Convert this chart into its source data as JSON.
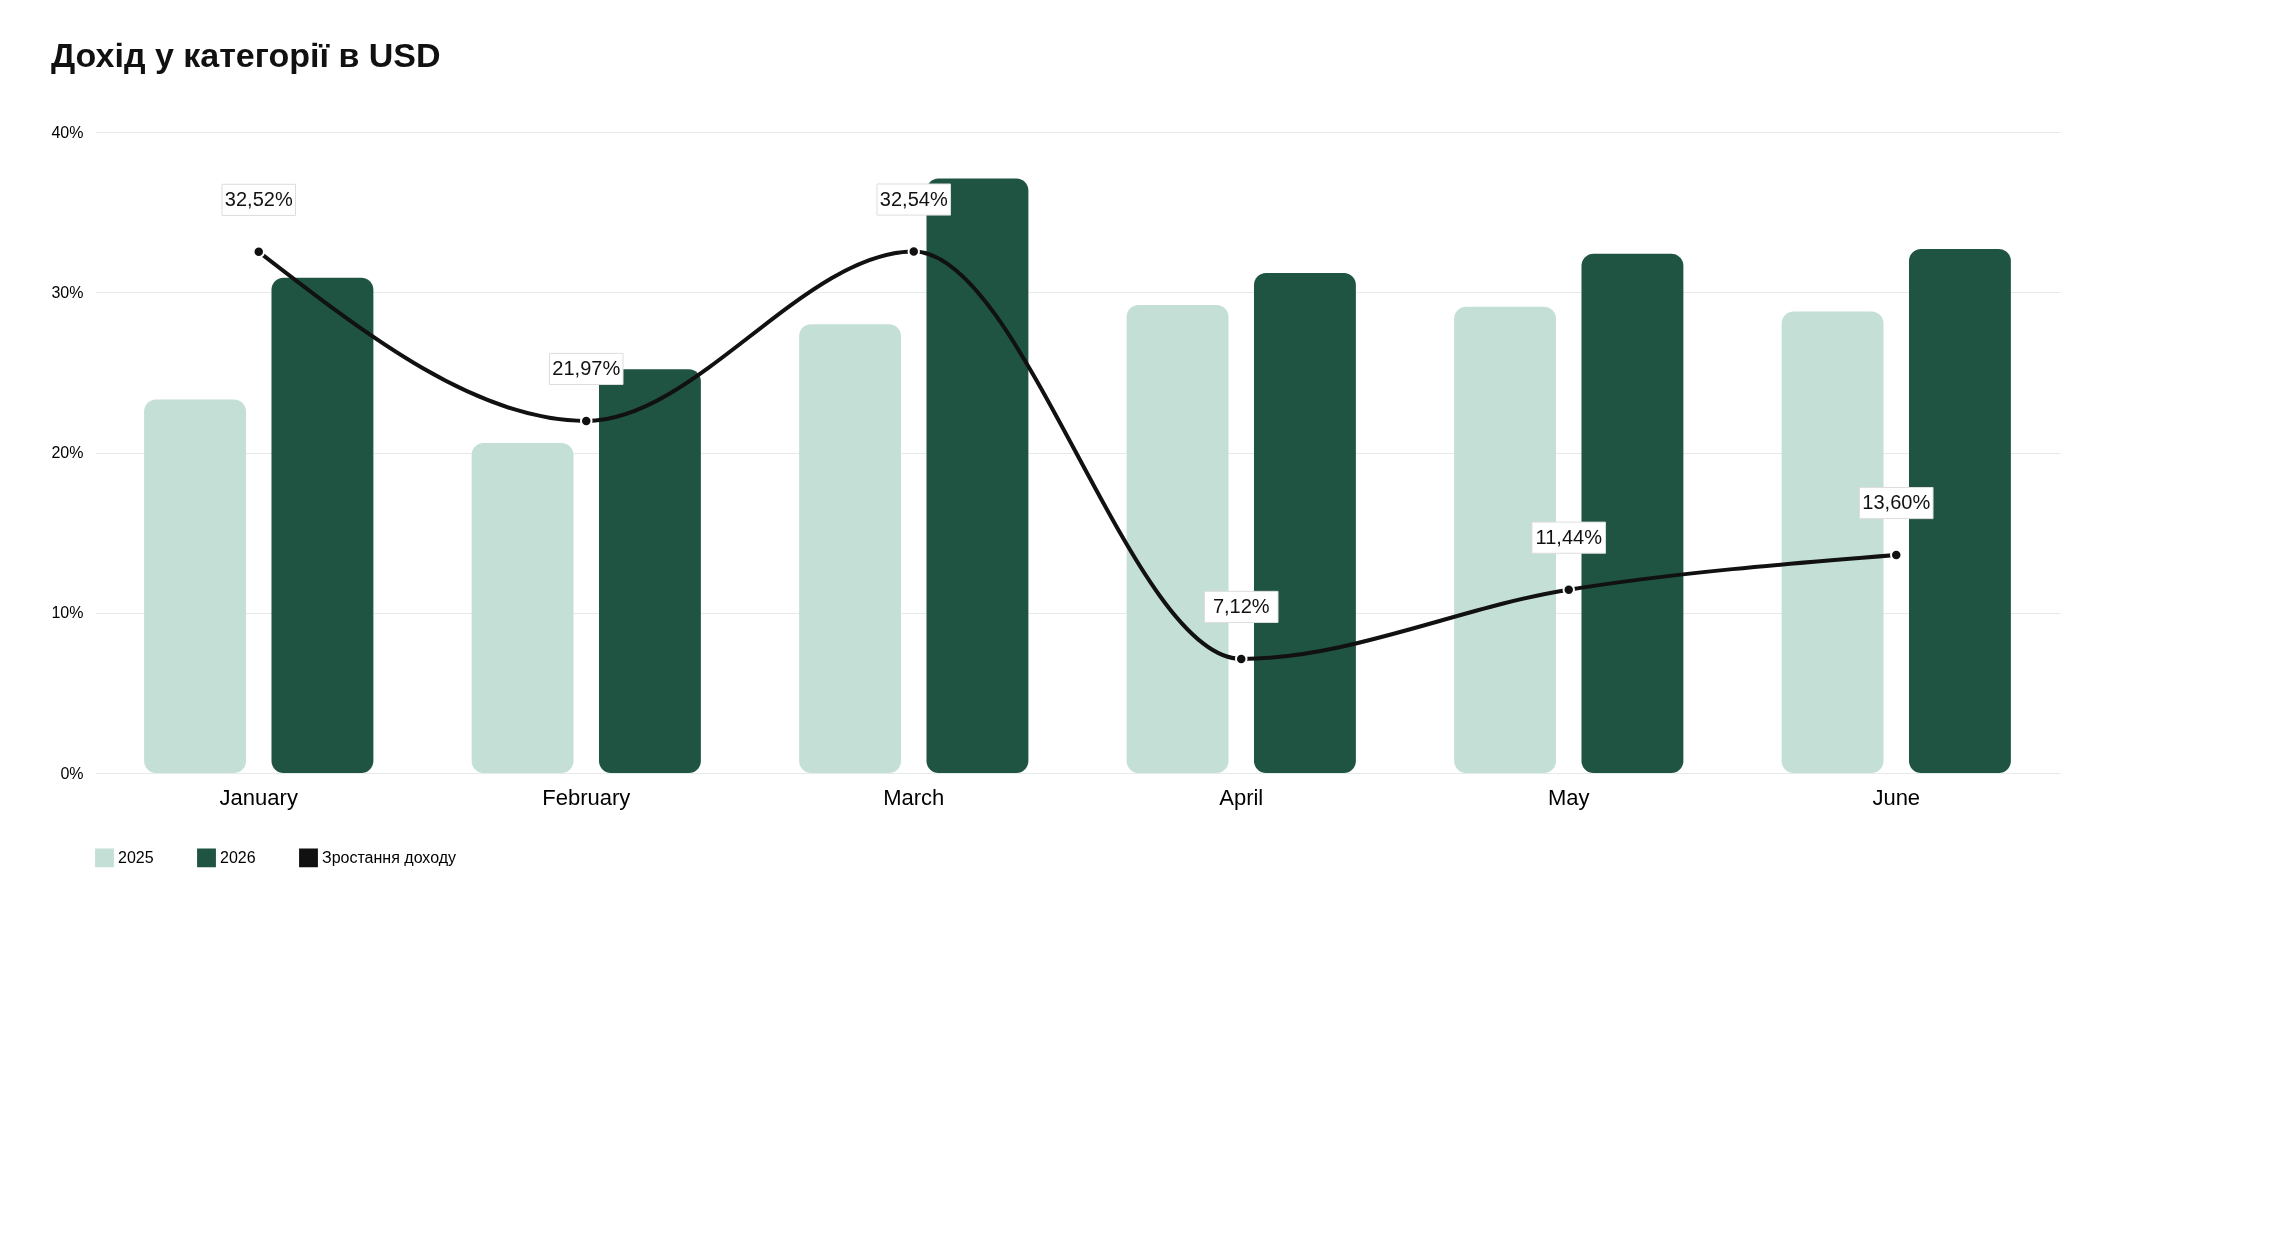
{
  "chart_data": {
    "type": "bar",
    "title": "Дохід у категорії в USD",
    "categories": [
      "January",
      "February",
      "March",
      "April",
      "May",
      "June"
    ],
    "series": [
      {
        "name": "2025",
        "color": "#c4dfd6",
        "values": [
          23.3,
          20.6,
          28.0,
          29.2,
          29.1,
          28.8
        ]
      },
      {
        "name": "2026",
        "color": "#1f5443",
        "values": [
          30.9,
          25.2,
          37.1,
          31.2,
          32.4,
          32.7
        ]
      },
      {
        "name": "Зростання доходу",
        "type": "line",
        "color": "#111111",
        "values": [
          32.52,
          21.97,
          32.54,
          7.12,
          11.44,
          13.6
        ],
        "value_labels": [
          "32,52%",
          "21,97%",
          "32,54%",
          "7,12%",
          "11,44%",
          "13,60%"
        ]
      }
    ],
    "ylim": [
      0,
      40
    ],
    "yticks": [
      {
        "value": 0,
        "label": "0%"
      },
      {
        "value": 10,
        "label": "10%"
      },
      {
        "value": 20,
        "label": "20%"
      },
      {
        "value": 30,
        "label": "30%"
      },
      {
        "value": 40,
        "label": "40%"
      }
    ],
    "grid": "y",
    "legend": "bottom",
    "marker": "circle",
    "line_style": "solid"
  }
}
